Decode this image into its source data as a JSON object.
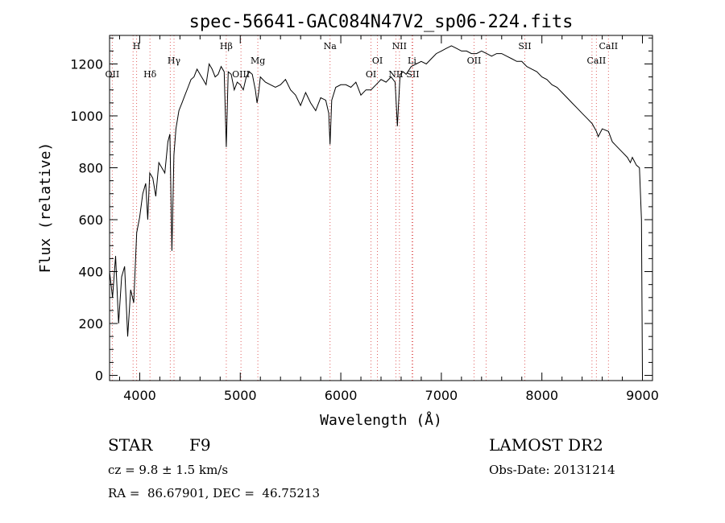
{
  "chart_data": {
    "type": "line",
    "title": "spec-56641-GAC084N47V2_sp06-224.fits",
    "xlabel": "Wavelength (Å)",
    "ylabel": "Flux (relative)",
    "xlim": [
      3700,
      9100
    ],
    "ylim": [
      -20,
      1310
    ],
    "xticks": [
      4000,
      5000,
      6000,
      7000,
      8000,
      9000
    ],
    "yticks": [
      0,
      200,
      400,
      600,
      800,
      1000,
      1200
    ],
    "grid": false,
    "series": [
      {
        "x": [
          3700,
          3730,
          3760,
          3790,
          3820,
          3850,
          3880,
          3910,
          3940,
          3970,
          4000,
          4030,
          4060,
          4080,
          4100,
          4130,
          4160,
          4190,
          4220,
          4250,
          4280,
          4300,
          4320,
          4340,
          4360,
          4390,
          4420,
          4450,
          4480,
          4510,
          4540,
          4570,
          4600,
          4630,
          4660,
          4690,
          4720,
          4750,
          4780,
          4810,
          4840,
          4861,
          4880,
          4910,
          4940,
          4970,
          5000,
          5030,
          5060,
          5090,
          5120,
          5150,
          5167,
          5183,
          5200,
          5250,
          5300,
          5350,
          5400,
          5450,
          5500,
          5550,
          5600,
          5650,
          5700,
          5750,
          5800,
          5850,
          5880,
          5893,
          5910,
          5950,
          6000,
          6050,
          6100,
          6150,
          6200,
          6250,
          6300,
          6350,
          6400,
          6450,
          6500,
          6540,
          6563,
          6590,
          6620,
          6650,
          6700,
          6750,
          6800,
          6850,
          6900,
          6950,
          7000,
          7050,
          7100,
          7150,
          7200,
          7250,
          7300,
          7350,
          7400,
          7450,
          7500,
          7550,
          7600,
          7650,
          7700,
          7750,
          7800,
          7850,
          7900,
          7950,
          8000,
          8050,
          8100,
          8150,
          8200,
          8250,
          8300,
          8350,
          8400,
          8450,
          8500,
          8542,
          8560,
          8600,
          8662,
          8700,
          8750,
          8800,
          8850,
          8880,
          8900,
          8940,
          8970,
          8990,
          9000
        ],
        "y": [
          400,
          300,
          460,
          200,
          380,
          420,
          150,
          330,
          280,
          550,
          610,
          700,
          740,
          600,
          780,
          760,
          690,
          820,
          800,
          780,
          900,
          930,
          480,
          850,
          950,
          1020,
          1050,
          1080,
          1110,
          1140,
          1150,
          1180,
          1160,
          1140,
          1120,
          1200,
          1180,
          1150,
          1160,
          1190,
          1170,
          880,
          1170,
          1160,
          1100,
          1130,
          1120,
          1100,
          1150,
          1170,
          1160,
          1100,
          1050,
          1090,
          1150,
          1130,
          1120,
          1110,
          1120,
          1140,
          1100,
          1080,
          1040,
          1090,
          1050,
          1020,
          1070,
          1060,
          1010,
          890,
          1060,
          1110,
          1120,
          1120,
          1110,
          1130,
          1080,
          1100,
          1100,
          1120,
          1140,
          1130,
          1150,
          1130,
          960,
          1160,
          1170,
          1160,
          1190,
          1200,
          1210,
          1200,
          1220,
          1240,
          1250,
          1260,
          1270,
          1260,
          1250,
          1250,
          1240,
          1240,
          1250,
          1240,
          1230,
          1240,
          1240,
          1230,
          1220,
          1210,
          1210,
          1190,
          1180,
          1170,
          1150,
          1140,
          1120,
          1110,
          1090,
          1070,
          1050,
          1030,
          1010,
          990,
          970,
          940,
          920,
          950,
          940,
          900,
          880,
          860,
          840,
          820,
          840,
          810,
          800,
          600,
          0
        ]
      }
    ],
    "line_markers": [
      {
        "label": "OII",
        "x": 3727,
        "row": 2
      },
      {
        "label": "H",
        "x": 3969,
        "row": 0
      },
      {
        "label": "Hδ",
        "x": 4102,
        "row": 2
      },
      {
        "label": "Hγ",
        "x": 4341,
        "row": 1
      },
      {
        "label": "Hβ",
        "x": 4861,
        "row": 0
      },
      {
        "label": "OIII",
        "x": 5007,
        "row": 2
      },
      {
        "label": "Mg",
        "x": 5175,
        "row": 1
      },
      {
        "label": "Na",
        "x": 5893,
        "row": 0
      },
      {
        "label": "OI",
        "x": 6300,
        "row": 2
      },
      {
        "label": "OI",
        "x": 6364,
        "row": 1
      },
      {
        "label": "NII",
        "x": 6548,
        "row": 2
      },
      {
        "label": "NII",
        "x": 6583,
        "row": 0
      },
      {
        "label": "Li",
        "x": 6708,
        "row": 1
      },
      {
        "label": "SII",
        "x": 6716,
        "row": 2
      },
      {
        "label": "OII",
        "x": 7325,
        "row": 1
      },
      {
        "label": "SII",
        "x": 7830,
        "row": 0
      },
      {
        "label": "CaII",
        "x": 8542,
        "row": 1
      },
      {
        "label": "CaII",
        "x": 8662,
        "row": 0
      }
    ],
    "extra_marker_lines": [
      3934,
      4304,
      7445,
      8498
    ]
  },
  "info": {
    "class": "STAR",
    "subclass": "F9",
    "survey": "LAMOST DR2",
    "cz": "cz = 9.8 ± 1.5 km/s",
    "obs_date": "Obs-Date: 20131214",
    "radec": "RA =  86.67901, DEC =  46.75213"
  }
}
